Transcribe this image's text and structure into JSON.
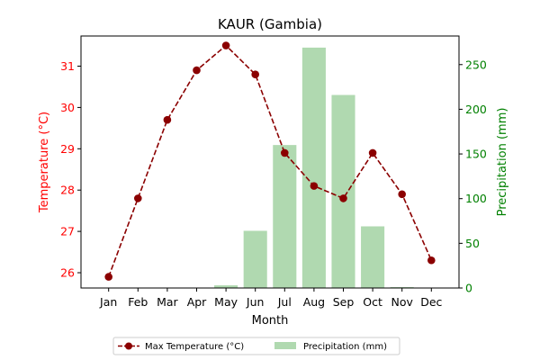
{
  "chart_data": {
    "type": "bar+line",
    "title": "KAUR (Gambia)",
    "xlabel": "Month",
    "ylabel_left": "Temperature (°C)",
    "ylabel_right": "Precipitation (mm)",
    "categories": [
      "Jan",
      "Feb",
      "Mar",
      "Apr",
      "May",
      "Jun",
      "Jul",
      "Aug",
      "Sep",
      "Oct",
      "Nov",
      "Dec"
    ],
    "series": [
      {
        "name": "Max Temperature (°C)",
        "type": "line",
        "axis": "left",
        "values": [
          25.9,
          27.8,
          29.7,
          30.9,
          31.5,
          30.8,
          28.9,
          28.1,
          27.8,
          28.9,
          27.9,
          26.3
        ]
      },
      {
        "name": "Precipitation (mm)",
        "type": "bar",
        "axis": "right",
        "values": [
          0,
          0,
          0,
          0,
          3,
          64,
          160,
          269,
          216,
          69,
          1,
          0
        ]
      }
    ],
    "ylim_left": [
      25.63,
      31.73
    ],
    "ylim_right": [
      0,
      282
    ],
    "yticks_left": [
      26,
      27,
      28,
      29,
      30,
      31
    ],
    "yticks_right": [
      0,
      50,
      100,
      150,
      200,
      250
    ],
    "grid": false,
    "legend_position": "bottom-center",
    "colors": {
      "line": "#8b0000",
      "bar": "#b0d9b0",
      "left_axis": "#ff0000",
      "right_axis": "#008000"
    }
  }
}
